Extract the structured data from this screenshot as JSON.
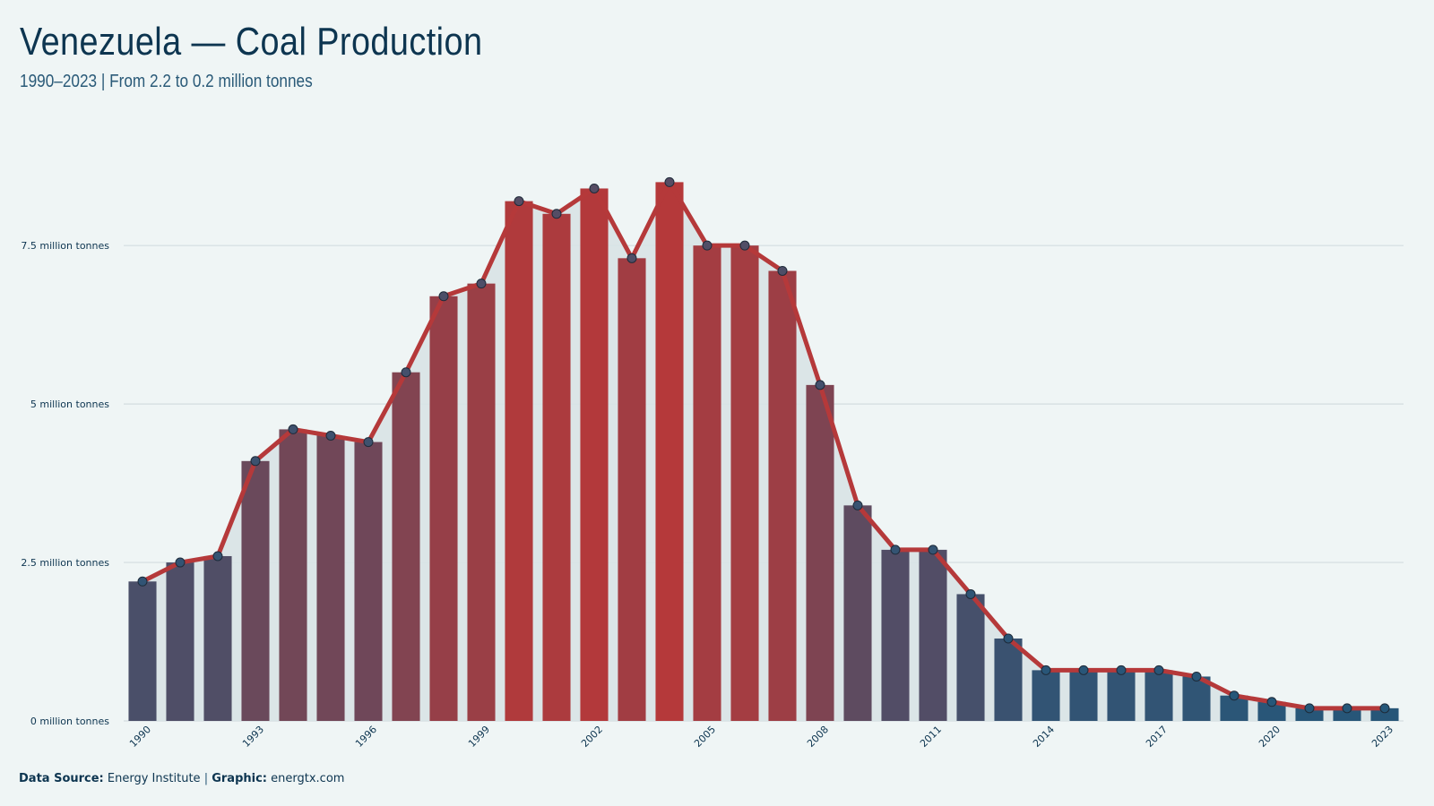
{
  "title": "Venezuela — Coal Production",
  "subtitle": "1990–2023 | From 2.2 to 0.2 million tonnes",
  "footer": {
    "source_label": "Data Source:",
    "source_value": "Energy Institute",
    "separator": "|",
    "graphic_label": "Graphic:",
    "graphic_value": "energtx.com"
  },
  "colors": {
    "background": "#eff5f5",
    "line": "#b5393a",
    "high_bar": "#b5393a",
    "low_bar": "#24577a",
    "area": "#d8e3e6",
    "gridline": "#d3dde0",
    "text": "#0d3550"
  },
  "chart_data": {
    "type": "bar",
    "x": [
      1990,
      1991,
      1992,
      1993,
      1994,
      1995,
      1996,
      1997,
      1998,
      1999,
      2000,
      2001,
      2002,
      2003,
      2004,
      2005,
      2006,
      2007,
      2008,
      2009,
      2010,
      2011,
      2012,
      2013,
      2014,
      2015,
      2016,
      2017,
      2018,
      2019,
      2020,
      2021,
      2022,
      2023
    ],
    "values": [
      2.2,
      2.5,
      2.6,
      4.1,
      4.6,
      4.5,
      4.4,
      5.5,
      6.7,
      6.9,
      8.2,
      8.0,
      8.4,
      7.3,
      8.5,
      7.5,
      7.5,
      7.1,
      5.3,
      3.4,
      2.7,
      2.7,
      2.0,
      1.3,
      0.8,
      0.8,
      0.8,
      0.8,
      0.7,
      0.4,
      0.3,
      0.2,
      0.2,
      0.2
    ],
    "overlay": "line with markers and shaded area",
    "x_tick_labels": [
      "1990",
      "1993",
      "1996",
      "1999",
      "2002",
      "2005",
      "2008",
      "2011",
      "2014",
      "2017",
      "2020",
      "2023"
    ],
    "y_ticks": [
      0,
      2.5,
      5,
      7.5
    ],
    "y_tick_labels": [
      "0 million tonnes",
      "2.5 million tonnes",
      "5 million tonnes",
      "7.5 million tonnes"
    ],
    "ylim": [
      0,
      9
    ],
    "grid": "horizontal",
    "legend": "none",
    "xlabel": "",
    "ylabel": ""
  }
}
